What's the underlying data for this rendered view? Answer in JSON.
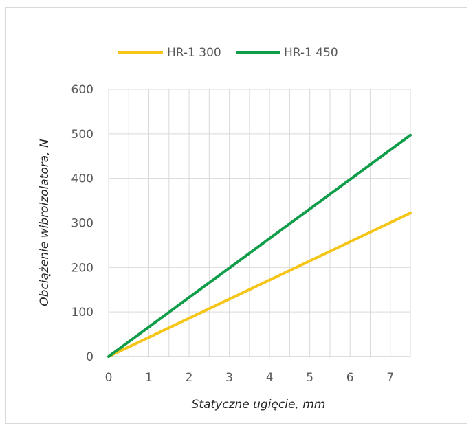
{
  "chart_data": {
    "type": "line",
    "title": "",
    "xlabel": "Statyczne ugięcie, mm",
    "ylabel": "Obciążenie wibroizolatora, N",
    "xlim": [
      0,
      7.5
    ],
    "ylim": [
      0,
      600
    ],
    "x_ticks": [
      0,
      1,
      2,
      3,
      4,
      5,
      6,
      7
    ],
    "y_ticks": [
      0,
      100,
      200,
      300,
      400,
      500,
      600
    ],
    "x_grid_step": 0.5,
    "grid": true,
    "legend_position": "top",
    "series": [
      {
        "name": "HR-1 300",
        "color": "#f5c518",
        "x": [
          0,
          7.5
        ],
        "y": [
          0,
          322
        ]
      },
      {
        "name": "HR-1 450",
        "color": "#0f9d4a",
        "x": [
          0,
          7.5
        ],
        "y": [
          0,
          497
        ]
      }
    ]
  }
}
